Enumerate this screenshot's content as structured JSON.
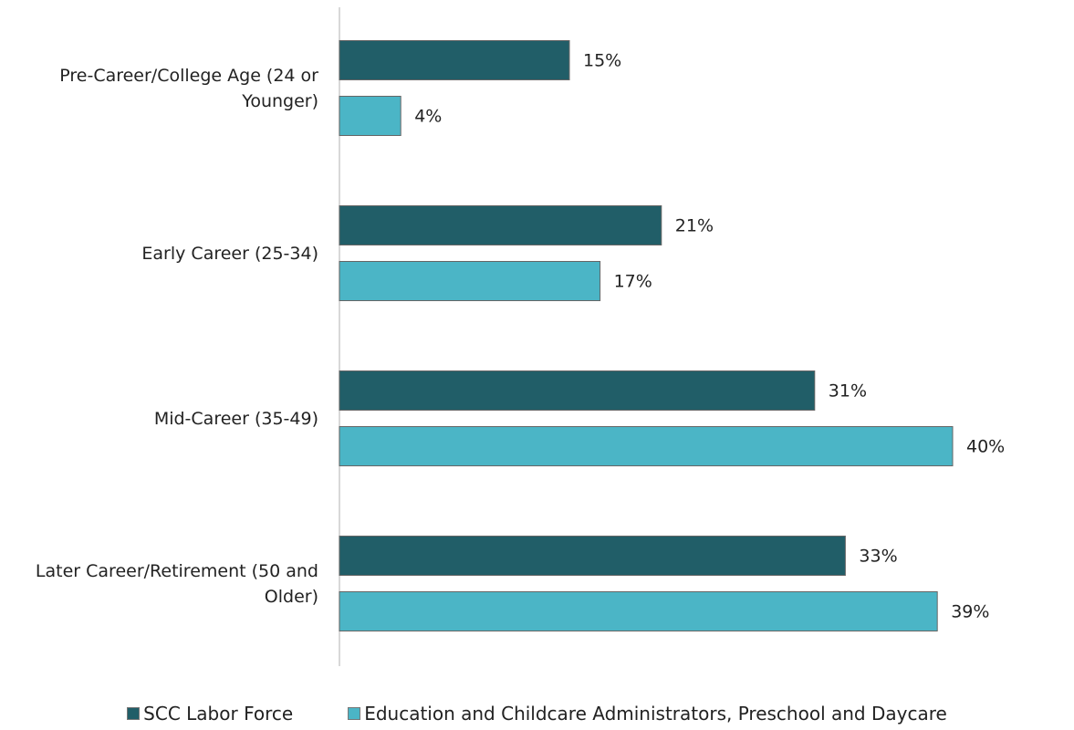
{
  "chart_data": {
    "type": "bar",
    "orientation": "horizontal",
    "categories": [
      "Pre-Career/College Age (24 or Younger)",
      "Early Career (25-34)",
      "Mid-Career (35-49)",
      "Later Career/Retirement (50 and Older)"
    ],
    "series": [
      {
        "name": "SCC Labor Force",
        "color": "#215e68",
        "values": [
          15,
          21,
          31,
          33
        ],
        "value_labels": [
          "15%",
          "21%",
          "31%",
          "33%"
        ]
      },
      {
        "name": "Education and Childcare Administrators, Preschool and Daycare",
        "color": "#4bb5c6",
        "values": [
          4,
          17,
          40,
          39
        ],
        "value_labels": [
          "4%",
          "17%",
          "40%",
          "39%"
        ]
      }
    ],
    "legend": "bottom"
  }
}
